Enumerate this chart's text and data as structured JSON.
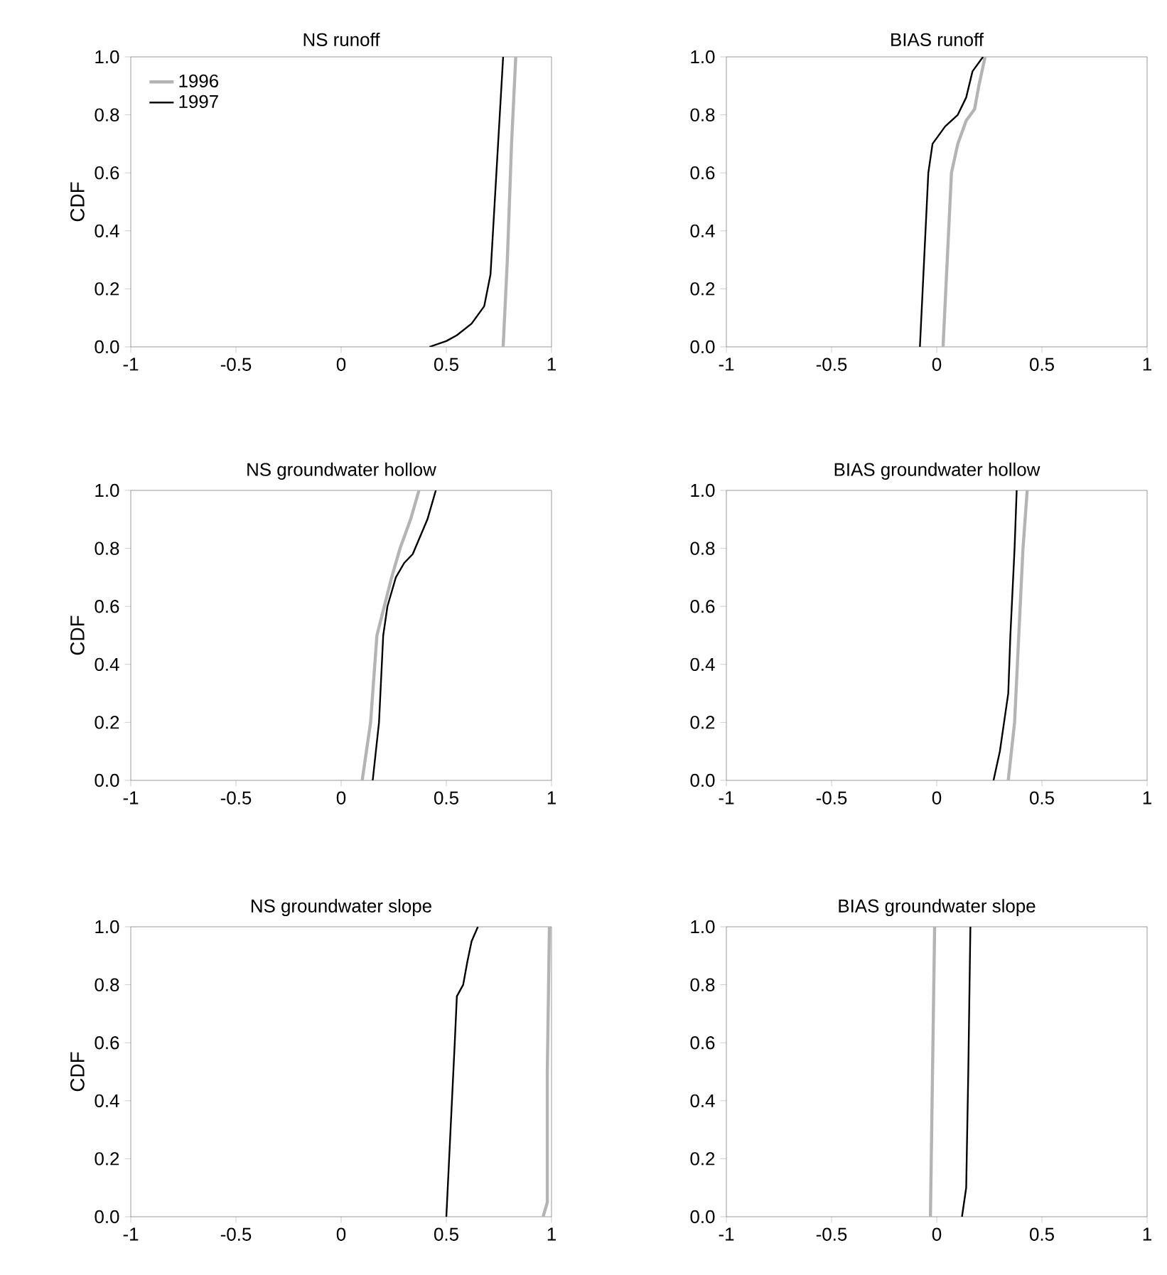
{
  "chart_data": [
    {
      "type": "line",
      "title": "NS  runoff",
      "ylabel": "CDF",
      "legend": "top left",
      "xlim": [
        -1,
        1
      ],
      "ylim": [
        0,
        1
      ],
      "xticks": [
        -1,
        -0.5,
        0,
        0.5,
        1
      ],
      "yticks": [
        {
          "value": 0,
          "label": "0.0"
        },
        {
          "value": 0.2,
          "label": "0.2"
        },
        {
          "value": 0.4,
          "label": "0.4"
        },
        {
          "value": 0.6,
          "label": "0.6"
        },
        {
          "value": 0.8,
          "label": "0.8"
        },
        {
          "value": 1,
          "label": "1.0"
        }
      ],
      "series": [
        {
          "name": "1996",
          "color": "#b4b4b4",
          "x": [
            0.77,
            0.79,
            0.81,
            0.83
          ],
          "values": [
            0,
            0.3,
            0.7,
            1.0
          ]
        },
        {
          "name": "1997",
          "color": "#000000",
          "x": [
            0.42,
            0.5,
            0.55,
            0.62,
            0.68,
            0.71,
            0.73,
            0.75,
            0.77
          ],
          "values": [
            0,
            0.02,
            0.04,
            0.08,
            0.14,
            0.25,
            0.5,
            0.75,
            1.0
          ]
        }
      ]
    },
    {
      "type": "line",
      "title": "BIAS  runoff",
      "xlim": [
        -1,
        1
      ],
      "ylim": [
        0,
        1
      ],
      "xticks": [
        -1,
        -0.5,
        0,
        0.5,
        1
      ],
      "yticks": [
        {
          "value": 0,
          "label": "0.0"
        },
        {
          "value": 0.2,
          "label": "0.2"
        },
        {
          "value": 0.4,
          "label": "0.4"
        },
        {
          "value": 0.6,
          "label": "0.6"
        },
        {
          "value": 0.8,
          "label": "0.8"
        },
        {
          "value": 1,
          "label": "1.0"
        }
      ],
      "series": [
        {
          "color": "#b4b4b4",
          "x": [
            0.03,
            0.05,
            0.07,
            0.1,
            0.14,
            0.18,
            0.2,
            0.23
          ],
          "values": [
            0,
            0.3,
            0.6,
            0.7,
            0.78,
            0.82,
            0.9,
            1.0
          ]
        },
        {
          "color": "#000000",
          "x": [
            -0.08,
            -0.06,
            -0.04,
            -0.02,
            0.04,
            0.1,
            0.14,
            0.17,
            0.22
          ],
          "values": [
            0,
            0.3,
            0.6,
            0.7,
            0.76,
            0.8,
            0.86,
            0.95,
            1.0
          ]
        }
      ]
    },
    {
      "type": "line",
      "title": "NS  groundwater hollow",
      "ylabel": "CDF",
      "xlim": [
        -1,
        1
      ],
      "ylim": [
        0,
        1
      ],
      "xticks": [
        -1,
        -0.5,
        0,
        0.5,
        1
      ],
      "yticks": [
        {
          "value": 0,
          "label": "0.0"
        },
        {
          "value": 0.2,
          "label": "0.2"
        },
        {
          "value": 0.4,
          "label": "0.4"
        },
        {
          "value": 0.6,
          "label": "0.6"
        },
        {
          "value": 0.8,
          "label": "0.8"
        },
        {
          "value": 1,
          "label": "1.0"
        }
      ],
      "series": [
        {
          "color": "#b4b4b4",
          "x": [
            0.1,
            0.14,
            0.17,
            0.24,
            0.28,
            0.33,
            0.37
          ],
          "values": [
            0,
            0.2,
            0.5,
            0.7,
            0.8,
            0.9,
            1.0
          ]
        },
        {
          "color": "#000000",
          "x": [
            0.15,
            0.18,
            0.2,
            0.22,
            0.26,
            0.3,
            0.34,
            0.41,
            0.45
          ],
          "values": [
            0,
            0.2,
            0.5,
            0.6,
            0.7,
            0.75,
            0.78,
            0.9,
            1.0
          ]
        }
      ]
    },
    {
      "type": "line",
      "title": "BIAS  groundwater hollow",
      "xlim": [
        -1,
        1
      ],
      "ylim": [
        0,
        1
      ],
      "xticks": [
        -1,
        -0.5,
        0,
        0.5,
        1
      ],
      "yticks": [
        {
          "value": 0,
          "label": "0.0"
        },
        {
          "value": 0.2,
          "label": "0.2"
        },
        {
          "value": 0.4,
          "label": "0.4"
        },
        {
          "value": 0.6,
          "label": "0.6"
        },
        {
          "value": 0.8,
          "label": "0.8"
        },
        {
          "value": 1,
          "label": "1.0"
        }
      ],
      "series": [
        {
          "color": "#b4b4b4",
          "x": [
            0.34,
            0.37,
            0.39,
            0.41,
            0.43
          ],
          "values": [
            0,
            0.2,
            0.5,
            0.8,
            1.0
          ]
        },
        {
          "color": "#000000",
          "x": [
            0.27,
            0.3,
            0.32,
            0.34,
            0.35,
            0.37,
            0.38
          ],
          "values": [
            0,
            0.1,
            0.2,
            0.3,
            0.5,
            0.8,
            1.0
          ]
        }
      ]
    },
    {
      "type": "line",
      "title": "NS  groundwater slope",
      "ylabel": "CDF",
      "xlim": [
        -1,
        1
      ],
      "ylim": [
        0,
        1
      ],
      "xticks": [
        -1,
        -0.5,
        0,
        0.5,
        1
      ],
      "yticks": [
        {
          "value": 0,
          "label": "0.0"
        },
        {
          "value": 0.2,
          "label": "0.2"
        },
        {
          "value": 0.4,
          "label": "0.4"
        },
        {
          "value": 0.6,
          "label": "0.6"
        },
        {
          "value": 0.8,
          "label": "0.8"
        },
        {
          "value": 1,
          "label": "1.0"
        }
      ],
      "series": [
        {
          "color": "#b4b4b4",
          "x": [
            0.96,
            0.98,
            0.98,
            0.99
          ],
          "values": [
            0,
            0.05,
            0.5,
            1.0
          ]
        },
        {
          "color": "#000000",
          "x": [
            0.5,
            0.52,
            0.54,
            0.55,
            0.58,
            0.6,
            0.62,
            0.65
          ],
          "values": [
            0,
            0.3,
            0.6,
            0.76,
            0.8,
            0.88,
            0.95,
            1.0
          ]
        }
      ]
    },
    {
      "type": "line",
      "title": "BIAS  groundwater slope",
      "xlim": [
        -1,
        1
      ],
      "ylim": [
        0,
        1
      ],
      "xticks": [
        -1,
        -0.5,
        0,
        0.5,
        1
      ],
      "yticks": [
        {
          "value": 0,
          "label": "0.0"
        },
        {
          "value": 0.2,
          "label": "0.2"
        },
        {
          "value": 0.4,
          "label": "0.4"
        },
        {
          "value": 0.6,
          "label": "0.6"
        },
        {
          "value": 0.8,
          "label": "0.8"
        },
        {
          "value": 1,
          "label": "1.0"
        }
      ],
      "series": [
        {
          "color": "#b4b4b4",
          "x": [
            -0.03,
            -0.02,
            -0.01
          ],
          "values": [
            0,
            0.5,
            1.0
          ]
        },
        {
          "color": "#000000",
          "x": [
            0.12,
            0.14,
            0.15,
            0.16
          ],
          "values": [
            0,
            0.1,
            0.5,
            1.0
          ]
        }
      ]
    }
  ]
}
